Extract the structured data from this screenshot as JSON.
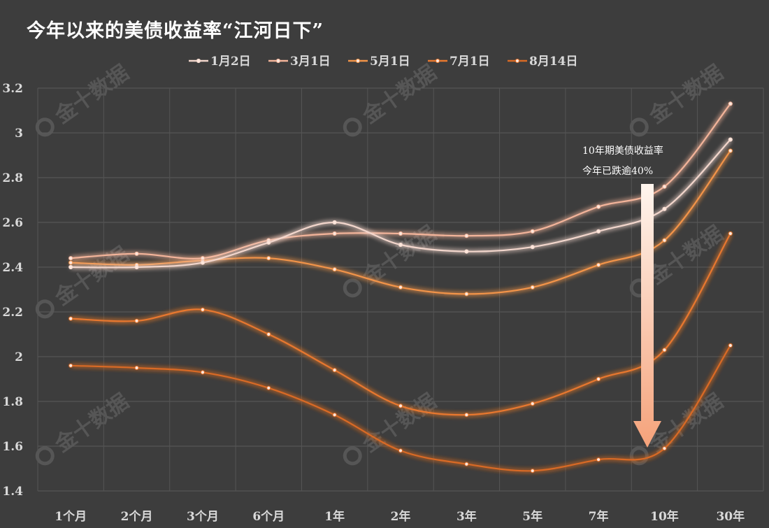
{
  "watermark": "金十数据",
  "chart_data": {
    "type": "line",
    "title": "今年以来的美债收益率“江河日下”",
    "categories": [
      "1个月",
      "2个月",
      "3个月",
      "6个月",
      "1年",
      "2年",
      "3年",
      "5年",
      "7年",
      "10年",
      "30年"
    ],
    "ylim": [
      1.4,
      3.2
    ],
    "yticks": [
      "1.4",
      "1.6",
      "1.8",
      "2",
      "2.2",
      "2.4",
      "2.6",
      "2.8",
      "3",
      "3.2"
    ],
    "grid": true,
    "legend_position": "top",
    "series": [
      {
        "name": "1月2日",
        "color": "#f2d6cc",
        "values": [
          2.4,
          2.4,
          2.42,
          2.51,
          2.6,
          2.5,
          2.47,
          2.49,
          2.56,
          2.66,
          2.97
        ]
      },
      {
        "name": "3月1日",
        "color": "#f3b49a",
        "values": [
          2.44,
          2.46,
          2.44,
          2.52,
          2.55,
          2.55,
          2.54,
          2.56,
          2.67,
          2.76,
          3.13
        ]
      },
      {
        "name": "5月1日",
        "color": "#f29448",
        "values": [
          2.42,
          2.41,
          2.43,
          2.44,
          2.39,
          2.31,
          2.28,
          2.31,
          2.41,
          2.52,
          2.92
        ]
      },
      {
        "name": "7月1日",
        "color": "#e8782e",
        "values": [
          2.17,
          2.16,
          2.21,
          2.1,
          1.94,
          1.78,
          1.74,
          1.79,
          1.9,
          2.03,
          2.55
        ]
      },
      {
        "name": "8月14日",
        "color": "#d96a25",
        "values": [
          1.96,
          1.95,
          1.93,
          1.86,
          1.74,
          1.58,
          1.52,
          1.49,
          1.54,
          1.59,
          2.05
        ]
      }
    ],
    "annotation": {
      "line1": "10年期美债收益率",
      "line2": "今年已跌逾40%",
      "category": "10年"
    }
  }
}
